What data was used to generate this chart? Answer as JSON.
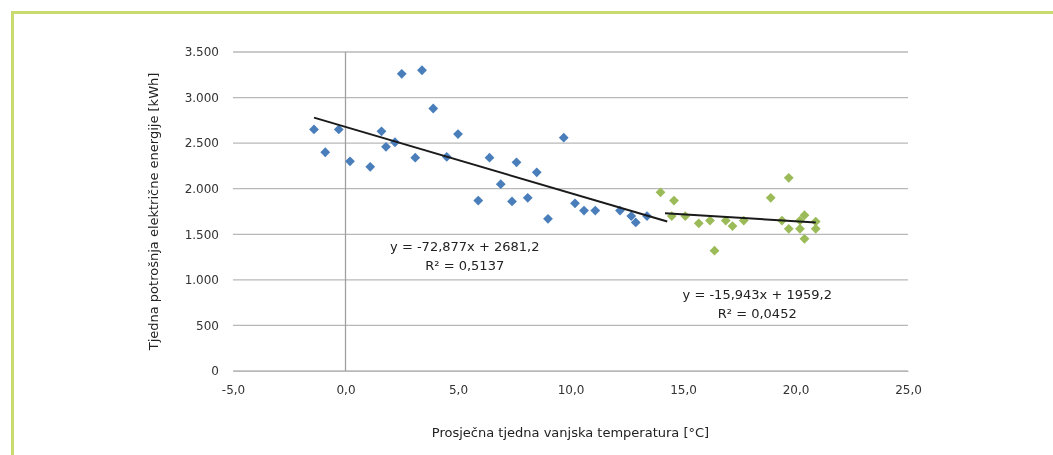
{
  "chart_data": {
    "type": "scatter",
    "xlabel": "Prosječna tjedna vanjska temperatura [°C]",
    "ylabel": "Tjedna potrošnja električne energije [kWh]",
    "xlim": [
      -5,
      25
    ],
    "ylim": [
      0,
      3500
    ],
    "xticks": [
      {
        "value": -5,
        "label": "-5,0"
      },
      {
        "value": 0,
        "label": "0,0"
      },
      {
        "value": 5,
        "label": "5,0"
      },
      {
        "value": 10,
        "label": "10,0"
      },
      {
        "value": 15,
        "label": "15,0"
      },
      {
        "value": 20,
        "label": "20,0"
      },
      {
        "value": 25,
        "label": "25,0"
      }
    ],
    "yticks": [
      0,
      500,
      {
        "value": 1000,
        "label": "1.000"
      },
      {
        "value": 1500,
        "label": "1.500"
      },
      {
        "value": 2000,
        "label": "2.000"
      },
      {
        "value": 2500,
        "label": "2.500"
      },
      {
        "value": 3000,
        "label": "3.000"
      },
      {
        "value": 3500,
        "label": "3.500"
      }
    ],
    "grid": "y",
    "marker": "diamond",
    "series": [
      {
        "color": "#4a7ebb",
        "x": [
          -1.4,
          -0.9,
          -0.3,
          0.2,
          1.1,
          1.6,
          1.8,
          2.2,
          2.5,
          3.1,
          3.4,
          3.9,
          4.5,
          5.0,
          5.9,
          6.4,
          6.9,
          7.4,
          7.6,
          8.1,
          8.5,
          9.0,
          9.7,
          10.2,
          10.6,
          11.1,
          12.2,
          12.7,
          12.9,
          13.4
        ],
        "values": [
          2650,
          2400,
          2650,
          2300,
          2240,
          2630,
          2460,
          2510,
          3260,
          2340,
          3300,
          2880,
          2350,
          2600,
          1870,
          2340,
          2050,
          1860,
          2290,
          1900,
          2180,
          1670,
          2560,
          1840,
          1760,
          1760,
          1760,
          1700,
          1630,
          1700
        ]
      },
      {
        "color": "#9bbb59",
        "x": [
          14.0,
          14.6,
          14.5,
          15.1,
          15.7,
          16.2,
          16.4,
          16.9,
          17.2,
          17.7,
          18.9,
          19.4,
          19.7,
          19.7,
          20.2,
          20.2,
          20.4,
          20.4,
          20.9,
          20.9
        ],
        "values": [
          1960,
          1870,
          1700,
          1700,
          1620,
          1650,
          1320,
          1650,
          1590,
          1650,
          1900,
          1650,
          2120,
          1560,
          1650,
          1560,
          1710,
          1450,
          1640,
          1560
        ]
      },
      {
        "type": "line",
        "color": "#1a1a1a",
        "marker": "none",
        "x": [
          -1.4,
          14.3
        ],
        "values": [
          2780,
          1640
        ]
      },
      {
        "type": "line",
        "color": "#1a1a1a",
        "marker": "none",
        "x": [
          14.2,
          20.9
        ],
        "values": [
          1730,
          1630
        ]
      }
    ],
    "annotations": [
      "y = -72,877x + 2681,2",
      "R² = 0,5137",
      "y = -15,943x + 1959,2",
      "R² = 0,0452"
    ]
  }
}
